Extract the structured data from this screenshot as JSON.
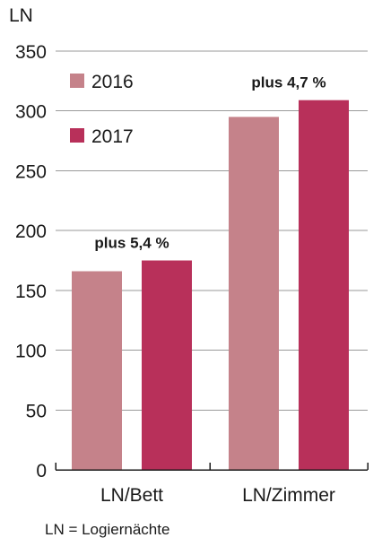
{
  "chart_data": {
    "type": "bar",
    "ylabel": "LN",
    "ylim": [
      0,
      350
    ],
    "yticks": [
      0,
      50,
      100,
      150,
      200,
      250,
      300,
      350
    ],
    "grid": true,
    "legend_position": "top-left",
    "categories": [
      "LN/Bett",
      "LN/Zimmer"
    ],
    "series": [
      {
        "name": "2016",
        "color": "#c5828a",
        "values": [
          166,
          295
        ]
      },
      {
        "name": "2017",
        "color": "#b8305a",
        "values": [
          175,
          309
        ]
      }
    ],
    "annotations": [
      "plus 5,4 %",
      "plus 4,7 %"
    ],
    "footnote": "LN = Logiernächte"
  }
}
